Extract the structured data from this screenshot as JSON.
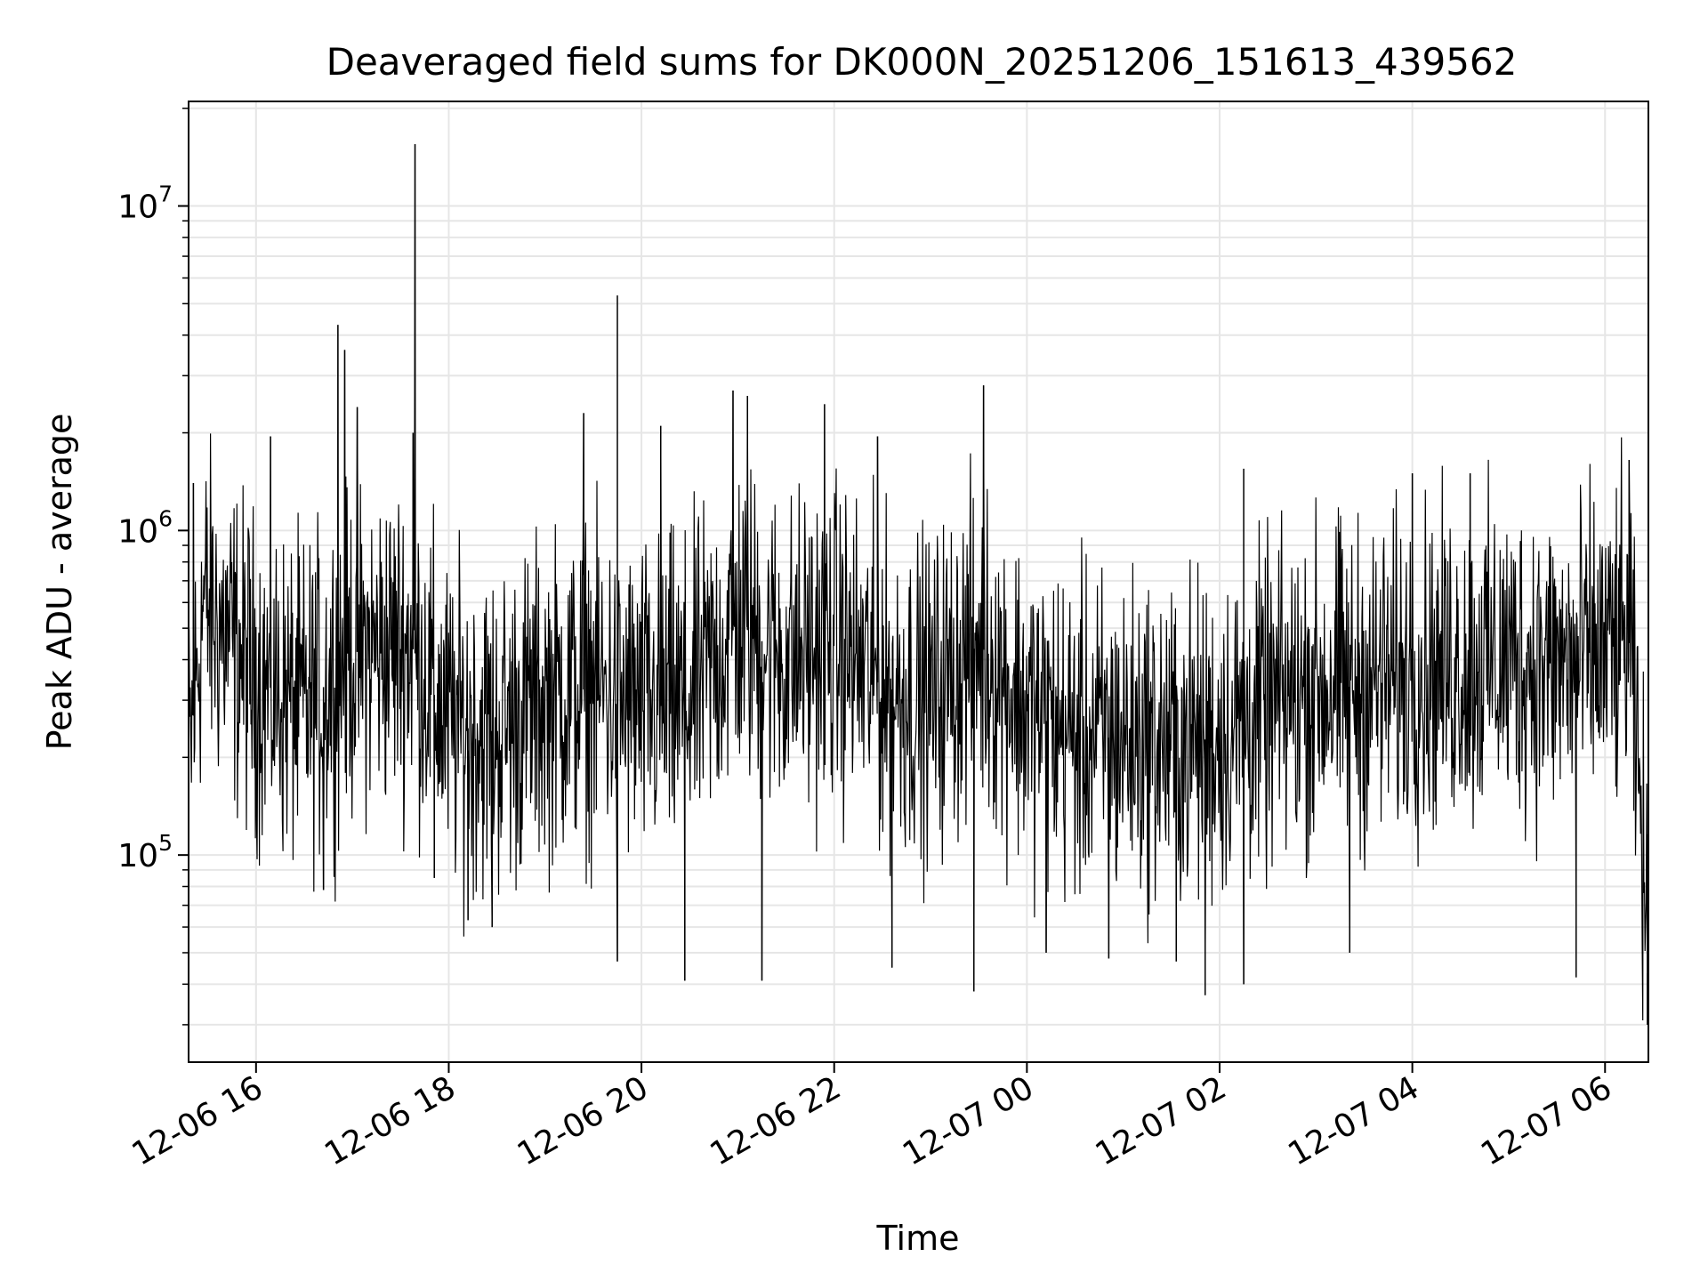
{
  "chart_data": {
    "type": "line",
    "title": "Deaveraged field sums for DK000N_20251206_151613_439562",
    "xlabel": "Time",
    "ylabel": "Peak ADU - average",
    "y_scale": "log",
    "x_range_hours": [
      15.3,
      30.45
    ],
    "ylim": [
      23000,
      21000000
    ],
    "x_ticks": [
      {
        "hour": 16,
        "label": "12-06 16"
      },
      {
        "hour": 18,
        "label": "12-06 18"
      },
      {
        "hour": 20,
        "label": "12-06 20"
      },
      {
        "hour": 22,
        "label": "12-06 22"
      },
      {
        "hour": 24,
        "label": "12-07 00"
      },
      {
        "hour": 26,
        "label": "12-07 02"
      },
      {
        "hour": 28,
        "label": "12-07 04"
      },
      {
        "hour": 30,
        "label": "12-07 06"
      }
    ],
    "y_ticks": [
      {
        "value": 100000,
        "base": "10",
        "exp": "5"
      },
      {
        "value": 1000000,
        "base": "10",
        "exp": "6"
      },
      {
        "value": 10000000,
        "base": "10",
        "exp": "7"
      }
    ],
    "grid": true,
    "line_color": "#000000",
    "grid_color": "#e6e6e6",
    "series_envelope": [
      {
        "hour": 15.3,
        "median": 180000
      },
      {
        "hour": 15.45,
        "median": 600000
      },
      {
        "hour": 16.0,
        "median": 350000
      },
      {
        "hour": 16.5,
        "median": 280000
      },
      {
        "hour": 17.0,
        "median": 420000
      },
      {
        "hour": 17.6,
        "median": 450000
      },
      {
        "hour": 18.0,
        "median": 250000
      },
      {
        "hour": 18.5,
        "median": 240000
      },
      {
        "hour": 19.0,
        "median": 300000
      },
      {
        "hour": 19.5,
        "median": 330000
      },
      {
        "hour": 20.0,
        "median": 280000
      },
      {
        "hour": 20.5,
        "median": 300000
      },
      {
        "hour": 21.0,
        "median": 520000
      },
      {
        "hour": 21.5,
        "median": 400000
      },
      {
        "hour": 22.0,
        "median": 450000
      },
      {
        "hour": 22.5,
        "median": 330000
      },
      {
        "hour": 23.0,
        "median": 300000
      },
      {
        "hour": 23.5,
        "median": 450000
      },
      {
        "hour": 24.0,
        "median": 280000
      },
      {
        "hour": 24.5,
        "median": 230000
      },
      {
        "hour": 25.0,
        "median": 230000
      },
      {
        "hour": 25.5,
        "median": 220000
      },
      {
        "hour": 26.0,
        "median": 230000
      },
      {
        "hour": 26.5,
        "median": 280000
      },
      {
        "hour": 27.0,
        "median": 330000
      },
      {
        "hour": 27.5,
        "median": 330000
      },
      {
        "hour": 28.0,
        "median": 360000
      },
      {
        "hour": 28.5,
        "median": 380000
      },
      {
        "hour": 29.0,
        "median": 400000
      },
      {
        "hour": 29.5,
        "median": 380000
      },
      {
        "hour": 30.0,
        "median": 420000
      },
      {
        "hour": 30.25,
        "median": 450000
      },
      {
        "hour": 30.4,
        "median": 100000
      },
      {
        "hour": 30.45,
        "median": 35000
      }
    ],
    "spikes": [
      {
        "hour": 15.35,
        "value": 1400000
      },
      {
        "hour": 16.15,
        "value": 1950000
      },
      {
        "hour": 16.85,
        "value": 4300000
      },
      {
        "hour": 16.92,
        "value": 3600000
      },
      {
        "hour": 17.05,
        "value": 2400000
      },
      {
        "hour": 17.65,
        "value": 15500000
      },
      {
        "hour": 17.63,
        "value": 2000000
      },
      {
        "hour": 19.4,
        "value": 2300000
      },
      {
        "hour": 19.75,
        "value": 5300000
      },
      {
        "hour": 20.2,
        "value": 2100000
      },
      {
        "hour": 20.95,
        "value": 2700000
      },
      {
        "hour": 21.1,
        "value": 2600000
      },
      {
        "hour": 21.9,
        "value": 2450000
      },
      {
        "hour": 22.45,
        "value": 1950000
      },
      {
        "hour": 23.55,
        "value": 2800000
      },
      {
        "hour": 26.25,
        "value": 1550000
      },
      {
        "hour": 28.0,
        "value": 1500000
      },
      {
        "hour": 28.6,
        "value": 1500000
      },
      {
        "hour": 30.25,
        "value": 1650000
      }
    ],
    "dips": [
      {
        "hour": 15.3,
        "value": 72000
      },
      {
        "hour": 16.7,
        "value": 78000
      },
      {
        "hour": 17.85,
        "value": 85000
      },
      {
        "hour": 18.2,
        "value": 63000
      },
      {
        "hour": 18.45,
        "value": 60000
      },
      {
        "hour": 19.75,
        "value": 47000
      },
      {
        "hour": 20.45,
        "value": 41000
      },
      {
        "hour": 21.25,
        "value": 41000
      },
      {
        "hour": 22.6,
        "value": 45000
      },
      {
        "hour": 23.45,
        "value": 38000
      },
      {
        "hour": 24.2,
        "value": 50000
      },
      {
        "hour": 24.85,
        "value": 48000
      },
      {
        "hour": 25.55,
        "value": 47000
      },
      {
        "hour": 25.85,
        "value": 37000
      },
      {
        "hour": 26.25,
        "value": 40000
      },
      {
        "hour": 27.35,
        "value": 50000
      },
      {
        "hour": 29.7,
        "value": 42000
      },
      {
        "hour": 30.44,
        "value": 30000
      }
    ]
  }
}
